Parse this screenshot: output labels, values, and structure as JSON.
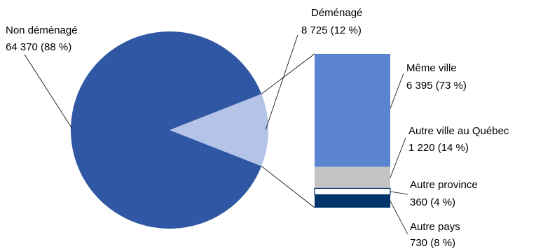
{
  "chart_data": {
    "type": "pie",
    "title": "",
    "pie": {
      "slices": [
        {
          "label": "Non déménagé",
          "value": 64370,
          "value_text": "64 370 (88 %)",
          "percent": 88,
          "color": "#3057A4"
        },
        {
          "label": "Déménagé",
          "value": 8725,
          "value_text": "8 725 (12 %)",
          "percent": 12,
          "color": "#B4C3E8"
        }
      ]
    },
    "breakdown": {
      "type": "stacked_bar",
      "of": "Déménagé",
      "segments": [
        {
          "label": "Même ville",
          "value": 6395,
          "value_text": "6 395 (73 %)",
          "percent": 73,
          "color": "#5B84D0"
        },
        {
          "label": "Autre ville au Québec",
          "value": 1220,
          "value_text": "1 220 (14 %)",
          "percent": 14,
          "color": "#C4C4C4"
        },
        {
          "label": "Autre province",
          "value": 360,
          "value_text": "360 (4 %)",
          "percent": 4,
          "color": "#FFFFFF"
        },
        {
          "label": "Autre pays",
          "value": 730,
          "value_text": "730 (8 %)",
          "percent": 8,
          "color": "#00346A"
        }
      ]
    }
  }
}
